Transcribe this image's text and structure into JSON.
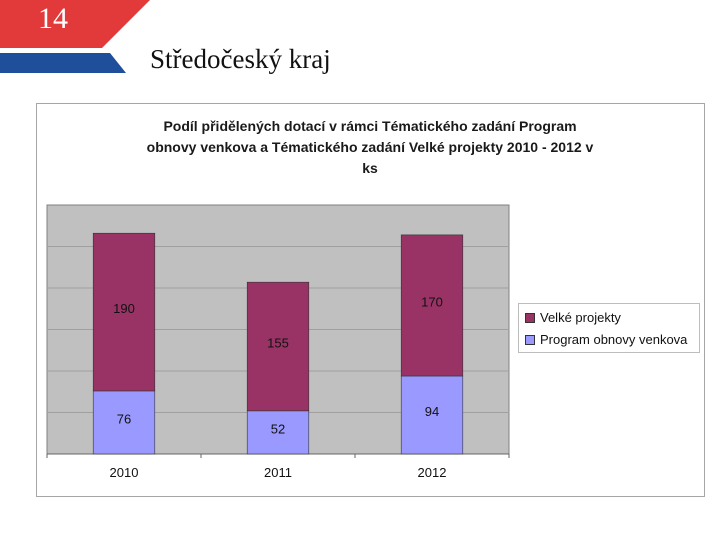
{
  "slide": {
    "number": "14",
    "title": "Středočeský kraj"
  },
  "colors": {
    "banner_red": "#e23a3a",
    "banner_blue": "#1f4e9a",
    "plot_bg": "#c0c0c0",
    "series_program": "#9999ff",
    "series_velke": "#993366"
  },
  "chart_data": {
    "type": "bar",
    "stacked": true,
    "title": "Podíl přidělených dotací v rámci Tématického zadání Program obnovy venkova a Tématického zadání Velké projekty 2010 - 2012 v ks",
    "title_lines": [
      "Podíl přidělených dotací v rámci Tématického zadání Program",
      "obnovy venkova a Tématického zadání Velké projekty 2010 - 2012 v",
      "ks"
    ],
    "categories": [
      "2010",
      "2011",
      "2012"
    ],
    "series": [
      {
        "name": "Program obnovy venkova",
        "values": [
          76,
          52,
          94
        ]
      },
      {
        "name": "Velké projekty",
        "values": [
          190,
          155,
          170
        ]
      }
    ],
    "legend_order": [
      "Velké projekty",
      "Program obnovy venkova"
    ],
    "legend_position": "right",
    "ylim": [
      0,
      300
    ],
    "grid": true,
    "xlabel": "",
    "ylabel": ""
  }
}
